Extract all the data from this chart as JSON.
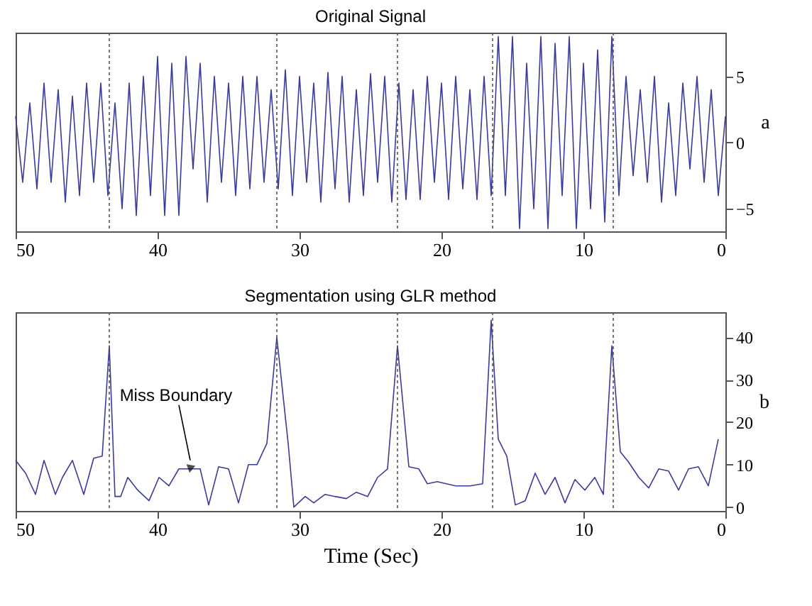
{
  "chart_data": [
    {
      "type": "line",
      "title": "Original Signal",
      "ylabel": "a",
      "x": [
        0,
        0.5,
        1,
        1.5,
        2,
        2.5,
        3,
        3.5,
        4,
        4.5,
        5,
        5.5,
        6,
        6.5,
        7,
        7.5,
        8,
        8.5,
        9,
        9.5,
        10,
        10.5,
        11,
        11.5,
        12,
        12.5,
        13,
        13.5,
        14,
        14.5,
        15,
        15.5,
        16,
        16.5,
        17,
        17.5,
        18,
        18.5,
        19,
        19.5,
        20,
        20.5,
        21,
        21.5,
        22,
        22.5,
        23,
        23.5,
        24,
        24.5,
        25,
        25.5,
        26,
        26.5,
        27,
        27.5,
        28,
        28.5,
        29,
        29.5,
        30,
        30.5,
        31,
        31.5,
        32,
        32.5,
        33,
        33.5,
        34,
        34.5,
        35,
        35.5,
        36,
        36.5,
        37,
        37.5,
        38,
        38.5,
        39,
        39.5,
        40,
        40.5,
        41,
        41.5,
        42,
        42.5,
        43,
        43.5,
        44,
        44.5,
        45,
        45.5,
        46,
        46.5,
        47,
        47.5,
        48,
        48.5,
        49,
        49.5,
        50
      ],
      "series": [
        {
          "color": "#3b3b9a",
          "values": [
            2,
            -4,
            4,
            -3,
            5,
            -2,
            4.5,
            -4,
            3,
            -4.5,
            5,
            -3,
            4,
            -2.5,
            5,
            -4,
            8,
            -6,
            7,
            -5,
            6,
            -6.5,
            8,
            -4,
            7.5,
            -6.5,
            8,
            -5,
            6,
            -6.5,
            8,
            -4,
            8,
            -4,
            5,
            -4.3,
            4,
            -3.5,
            5,
            -4.3,
            4.5,
            -3,
            5,
            -4.3,
            4,
            -4.3,
            4.5,
            -4.5,
            5,
            -3,
            5.2,
            -4,
            4,
            -4.5,
            5,
            -3.5,
            5.3,
            -4.5,
            4.5,
            -3,
            5,
            -4,
            5.5,
            -3.5,
            4,
            -3,
            5,
            -3.5,
            5,
            -4,
            4.5,
            -3,
            5,
            -4.5,
            6,
            -2,
            6.5,
            -5.5,
            6,
            -5.5,
            6.5,
            -4,
            5,
            -5.5,
            4.5,
            -5,
            3,
            -4,
            4.5,
            -3,
            4.5,
            -4,
            3.5,
            -4.5,
            4,
            -3,
            4.5,
            -3.5,
            3,
            -3,
            2
          ]
        }
      ],
      "xlim": [
        50,
        0
      ],
      "xticks": [
        0,
        10,
        20,
        30,
        40,
        50
      ],
      "ylim": [
        -6.7,
        8.3
      ],
      "yticks": [
        -5,
        0,
        5
      ],
      "grid": false,
      "ref_lines": [
        {
          "axis": "x",
          "value": 7.9,
          "line_style": "dotted"
        },
        {
          "axis": "x",
          "value": 16.4,
          "line_style": "dotted"
        },
        {
          "axis": "x",
          "value": 23.1,
          "line_style": "dotted"
        },
        {
          "axis": "x",
          "value": 31.6,
          "line_style": "dotted"
        },
        {
          "axis": "x",
          "value": 43.4,
          "line_style": "dotted"
        }
      ]
    },
    {
      "type": "line",
      "title": "Segmentation using GLR method",
      "xlabel": "Time (Sec)",
      "ylabel": "b",
      "x": [
        0.5,
        1.2,
        1.9,
        2.6,
        3.3,
        4.0,
        4.7,
        5.4,
        6.1,
        6.8,
        7.4,
        8.0,
        8.6,
        9.2,
        9.9,
        10.6,
        11.3,
        12.0,
        12.7,
        13.4,
        14.1,
        14.8,
        15.4,
        16.0,
        16.5,
        17.1,
        18,
        19,
        20.3,
        21,
        21.6,
        22.3,
        23.1,
        23.8,
        24.5,
        25.2,
        26,
        26.7,
        27.5,
        28.2,
        29,
        29.6,
        30.4,
        30.8,
        31.6,
        32.3,
        33,
        33.6,
        34.3,
        35,
        35.7,
        36.4,
        37,
        37.8,
        38.5,
        39.2,
        39.9,
        40.6,
        41.4,
        42.1,
        42.6,
        43,
        43.4,
        43.9,
        44.5,
        45.2,
        46,
        46.7,
        47.2,
        48,
        48.6,
        49.3,
        50
      ],
      "series": [
        {
          "color": "#3b3b9a",
          "values": [
            16,
            5,
            9.5,
            9,
            4,
            8.5,
            9,
            4.5,
            7,
            10.5,
            13,
            38,
            3,
            7,
            4,
            6.5,
            1,
            7,
            3,
            8,
            1.5,
            0.5,
            12,
            16,
            44,
            5.5,
            5,
            5,
            6,
            5.5,
            9,
            9.5,
            38,
            9,
            7,
            2.5,
            3.5,
            2,
            2.5,
            3,
            1,
            2.5,
            0,
            15,
            40,
            15,
            10,
            10,
            1,
            9,
            9.5,
            0.5,
            9,
            9,
            9,
            5,
            7,
            1.5,
            4,
            7,
            2.5,
            2.5,
            38,
            12,
            11.5,
            3,
            11,
            7,
            3,
            11,
            3,
            8,
            11
          ]
        }
      ],
      "xlim": [
        50,
        0
      ],
      "xticks": [
        0,
        10,
        20,
        30,
        40,
        50
      ],
      "ylim": [
        -0.9,
        45.9
      ],
      "yticks": [
        0,
        10,
        20,
        30,
        40
      ],
      "grid": false,
      "annotations": [
        {
          "text": "Miss Boundary",
          "x": 37.7,
          "y": 9
        }
      ],
      "ref_lines": [
        {
          "axis": "x",
          "value": 7.9,
          "line_style": "dotted"
        },
        {
          "axis": "x",
          "value": 16.4,
          "line_style": "dotted"
        },
        {
          "axis": "x",
          "value": 23.1,
          "line_style": "dotted"
        },
        {
          "axis": "x",
          "value": 31.6,
          "line_style": "dotted"
        },
        {
          "axis": "x",
          "value": 43.4,
          "line_style": "dotted"
        }
      ]
    }
  ]
}
